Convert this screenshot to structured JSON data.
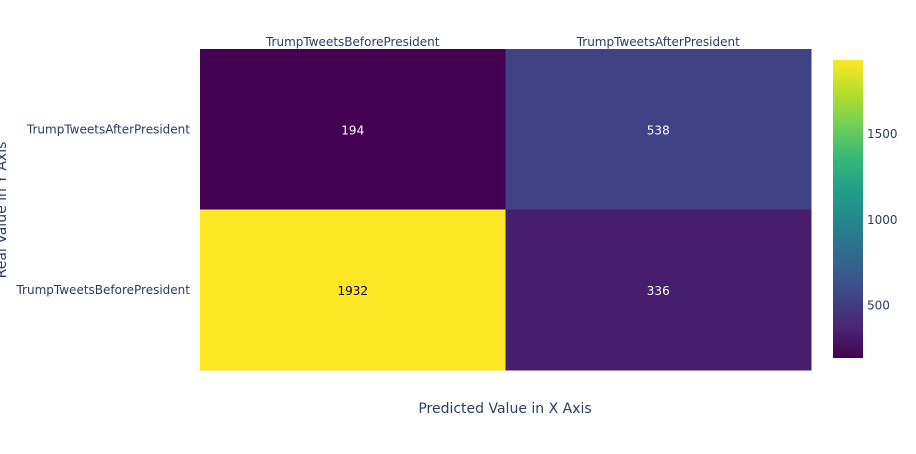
{
  "chart_data": {
    "type": "heatmap",
    "title": "",
    "xlabel": "Predicted Value in X Axis",
    "ylabel": "Real Value in Y Axis",
    "x_categories": [
      "TrumpTweetsBeforePresident",
      "TrumpTweetsAfterPresident"
    ],
    "y_categories": [
      "TrumpTweetsAfterPresident",
      "TrumpTweetsBeforePresident"
    ],
    "z": [
      [
        194,
        538
      ],
      [
        1932,
        336
      ]
    ],
    "colorscale": "Viridis",
    "zmin": 194,
    "zmax": 1932,
    "colorbar_ticks": [
      500,
      1000,
      1500
    ],
    "colorbar_tick_labels": [
      "500",
      "1000",
      "1500"
    ],
    "x_axis_side": "top",
    "grid": false
  }
}
